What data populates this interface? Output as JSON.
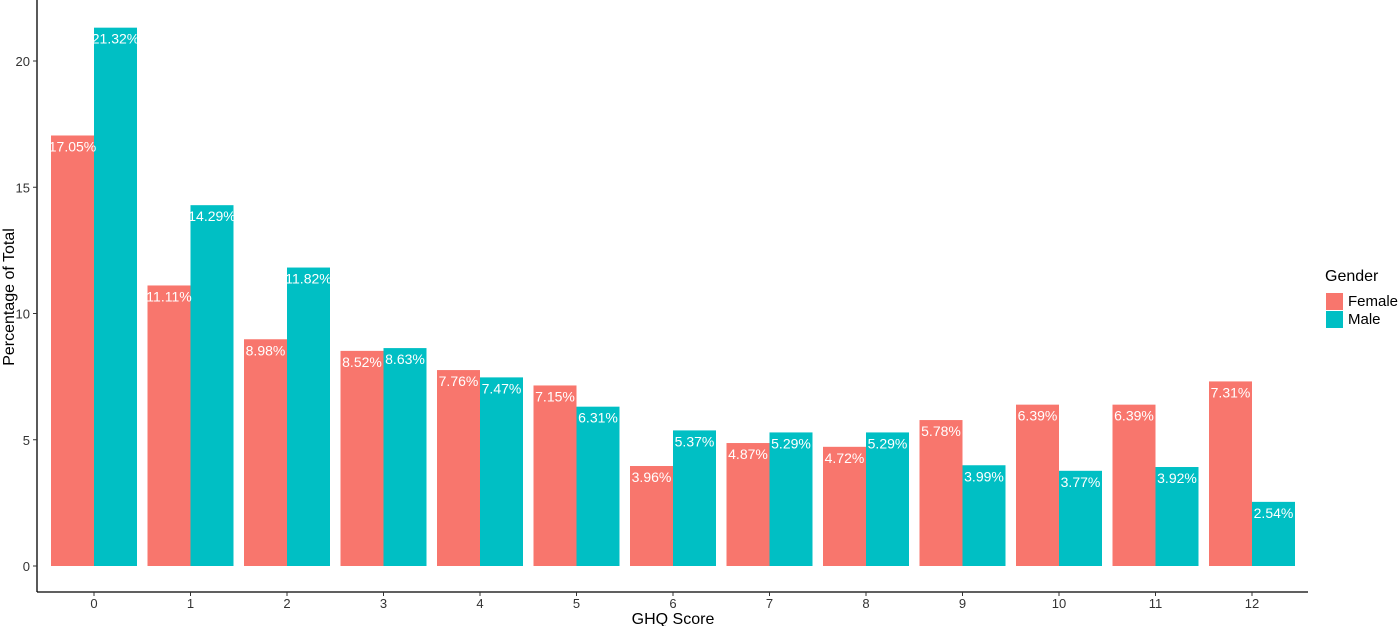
{
  "chart_data": {
    "type": "bar",
    "xlabel": "GHQ Score",
    "ylabel": "Percentage of Total",
    "categories": [
      "0",
      "1",
      "2",
      "3",
      "4",
      "5",
      "6",
      "7",
      "8",
      "9",
      "10",
      "11",
      "12"
    ],
    "series": [
      {
        "name": "Female",
        "color": "#F8766D",
        "values": [
          17.05,
          11.11,
          8.98,
          8.52,
          7.76,
          7.15,
          3.96,
          4.87,
          4.72,
          5.78,
          6.39,
          6.39,
          7.31
        ],
        "labels": [
          "17.05%",
          "11.11%",
          "8.98%",
          "8.52%",
          "7.76%",
          "7.15%",
          "3.96%",
          "4.87%",
          "4.72%",
          "5.78%",
          "6.39%",
          "6.39%",
          "7.31%"
        ]
      },
      {
        "name": "Male",
        "color": "#00BFC4",
        "values": [
          21.32,
          14.29,
          11.82,
          8.63,
          7.47,
          6.31,
          5.37,
          5.29,
          5.29,
          3.99,
          3.77,
          3.92,
          2.54
        ],
        "labels": [
          "21.32%",
          "14.29%",
          "11.82%",
          "8.63%",
          "7.47%",
          "6.31%",
          "5.37%",
          "5.29%",
          "5.29%",
          "3.99%",
          "3.77%",
          "3.92%",
          "2.54%"
        ]
      }
    ],
    "yticks": [
      0,
      5,
      10,
      15,
      20
    ],
    "ylim": [
      0,
      22.4
    ],
    "grid": false,
    "legend": {
      "title": "Gender",
      "position": "right"
    }
  }
}
